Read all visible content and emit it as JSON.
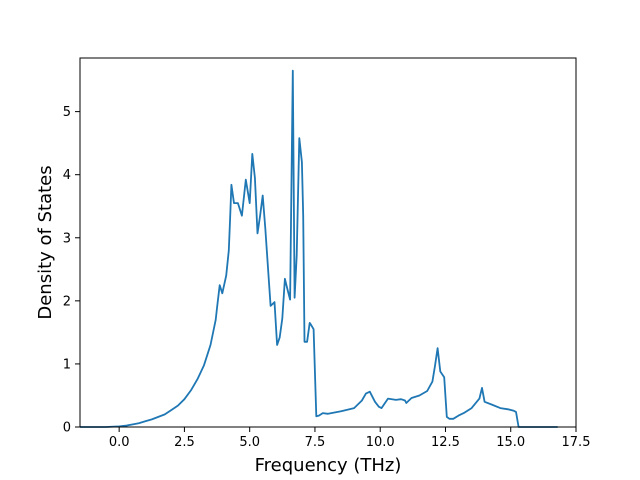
{
  "chart_data": {
    "type": "line",
    "title": "",
    "xlabel": "Frequency (THz)",
    "ylabel": "Density of States",
    "xlim": [
      -1.5,
      17.5
    ],
    "ylim": [
      0,
      5.85
    ],
    "xticks": [
      0.0,
      2.5,
      5.0,
      7.5,
      10.0,
      12.5,
      15.0,
      17.5
    ],
    "xtick_labels": [
      "0.0",
      "2.5",
      "5.0",
      "7.5",
      "10.0",
      "12.5",
      "15.0",
      "17.5"
    ],
    "yticks": [
      0,
      1,
      2,
      3,
      4,
      5
    ],
    "ytick_labels": [
      "0",
      "1",
      "2",
      "3",
      "4",
      "5"
    ],
    "grid": false,
    "legend": "none",
    "line_color": "#1f77b4",
    "series": [
      {
        "x": [
          -1.5,
          -0.5,
          0.0,
          0.25,
          0.5,
          0.75,
          1.0,
          1.25,
          1.5,
          1.75,
          2.0,
          2.25,
          2.5,
          2.75,
          3.0,
          3.25,
          3.5,
          3.7,
          3.75,
          3.85,
          3.95,
          4.1,
          4.2,
          4.25,
          4.3,
          4.4,
          4.55,
          4.7,
          4.85,
          5.0,
          5.1,
          5.2,
          5.3,
          5.4,
          5.5,
          5.6,
          5.7,
          5.8,
          5.95,
          6.05,
          6.15,
          6.25,
          6.35,
          6.45,
          6.55,
          6.65,
          6.72,
          6.8,
          6.9,
          7.0,
          7.05,
          7.1,
          7.2,
          7.3,
          7.35,
          7.45,
          7.55,
          7.65,
          7.8,
          8.0,
          8.5,
          9.0,
          9.3,
          9.45,
          9.6,
          9.8,
          9.95,
          10.05,
          10.3,
          10.6,
          10.8,
          10.95,
          11.0,
          11.2,
          11.5,
          11.8,
          12.0,
          12.1,
          12.2,
          12.3,
          12.45,
          12.55,
          12.65,
          12.8,
          13.0,
          13.2,
          13.5,
          13.8,
          13.9,
          14.0,
          14.3,
          14.6,
          14.9,
          15.1,
          15.2,
          15.3,
          16.0,
          16.8
        ],
        "y": [
          0.0,
          0.0,
          0.01,
          0.02,
          0.04,
          0.06,
          0.09,
          0.12,
          0.16,
          0.2,
          0.27,
          0.34,
          0.44,
          0.58,
          0.76,
          0.98,
          1.3,
          1.7,
          1.9,
          2.25,
          2.12,
          2.4,
          2.8,
          3.3,
          3.84,
          3.55,
          3.55,
          3.35,
          3.92,
          3.55,
          4.33,
          3.95,
          3.07,
          3.35,
          3.67,
          3.15,
          2.52,
          1.92,
          1.98,
          1.3,
          1.42,
          1.72,
          2.35,
          2.18,
          2.02,
          5.65,
          2.05,
          2.72,
          4.58,
          4.2,
          3.35,
          1.35,
          1.35,
          1.65,
          1.62,
          1.55,
          0.17,
          0.18,
          0.22,
          0.21,
          0.25,
          0.3,
          0.42,
          0.53,
          0.56,
          0.4,
          0.32,
          0.3,
          0.45,
          0.43,
          0.44,
          0.42,
          0.38,
          0.46,
          0.5,
          0.57,
          0.72,
          0.97,
          1.25,
          0.88,
          0.79,
          0.16,
          0.13,
          0.13,
          0.18,
          0.22,
          0.3,
          0.45,
          0.62,
          0.4,
          0.35,
          0.3,
          0.28,
          0.26,
          0.24,
          0.0,
          0.0,
          0.0
        ]
      }
    ]
  }
}
